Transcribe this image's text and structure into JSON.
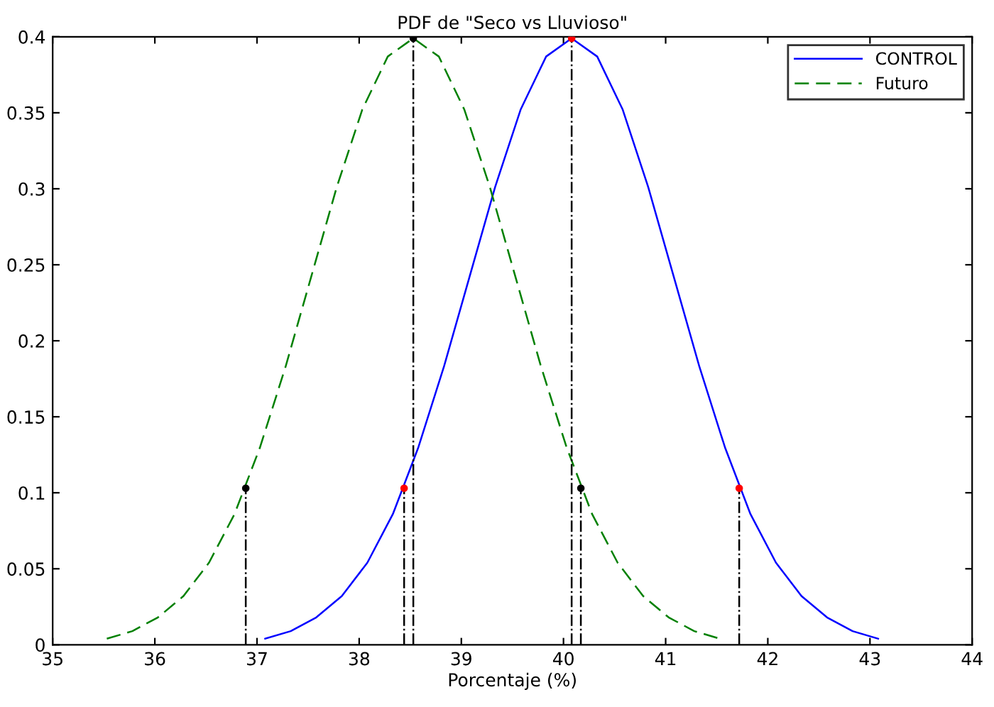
{
  "chart_data": {
    "type": "line",
    "title": "PDF de \"Seco vs Lluvioso\"",
    "xlabel": "Porcentaje (%)",
    "xlim": [
      35,
      44
    ],
    "xticks": [
      35,
      36,
      37,
      38,
      39,
      40,
      41,
      42,
      43,
      44
    ],
    "ylim": [
      0,
      0.4
    ],
    "yticks": [
      0,
      0.05,
      0.1,
      0.15,
      0.2,
      0.25,
      0.3,
      0.35,
      0.4
    ],
    "grid": false,
    "legend": "top right",
    "series": [
      {
        "name": "CONTROL",
        "color": "#0000ff",
        "line_style": "solid",
        "marker": "none",
        "x": [
          37.08,
          37.33,
          37.58,
          37.83,
          38.08,
          38.33,
          38.58,
          38.83,
          39.08,
          39.33,
          39.58,
          39.83,
          40.08,
          40.33,
          40.58,
          40.83,
          41.08,
          41.33,
          41.58,
          41.83,
          42.08,
          42.33,
          42.58,
          42.83,
          43.08
        ],
        "values": [
          0.004,
          0.009,
          0.018,
          0.032,
          0.054,
          0.086,
          0.13,
          0.183,
          0.242,
          0.301,
          0.352,
          0.387,
          0.399,
          0.387,
          0.352,
          0.301,
          0.242,
          0.183,
          0.13,
          0.086,
          0.054,
          0.032,
          0.018,
          0.009,
          0.004
        ]
      },
      {
        "name": "Futuro",
        "color": "#008000",
        "line_style": "dashed",
        "marker": "none",
        "x": [
          35.53,
          35.78,
          36.03,
          36.28,
          36.53,
          36.78,
          37.03,
          37.28,
          37.53,
          37.78,
          38.03,
          38.28,
          38.53,
          38.78,
          39.03,
          39.28,
          39.53,
          39.78,
          40.03,
          40.28,
          40.53,
          40.78,
          41.03,
          41.28,
          41.53
        ],
        "values": [
          0.004,
          0.009,
          0.018,
          0.032,
          0.054,
          0.086,
          0.13,
          0.183,
          0.242,
          0.301,
          0.352,
          0.387,
          0.399,
          0.387,
          0.352,
          0.301,
          0.242,
          0.183,
          0.13,
          0.086,
          0.054,
          0.032,
          0.018,
          0.009,
          0.004
        ]
      },
      {
        "type": "lollipop",
        "color": "#ff0000",
        "marker": "circle",
        "x": [
          38.44,
          40.08,
          41.72
        ],
        "values": [
          0.103,
          0.399,
          0.103
        ]
      },
      {
        "type": "lollipop",
        "color": "#000000",
        "marker": "circle",
        "x": [
          36.89,
          38.53,
          40.17
        ],
        "values": [
          0.103,
          0.399,
          0.103
        ]
      }
    ]
  }
}
